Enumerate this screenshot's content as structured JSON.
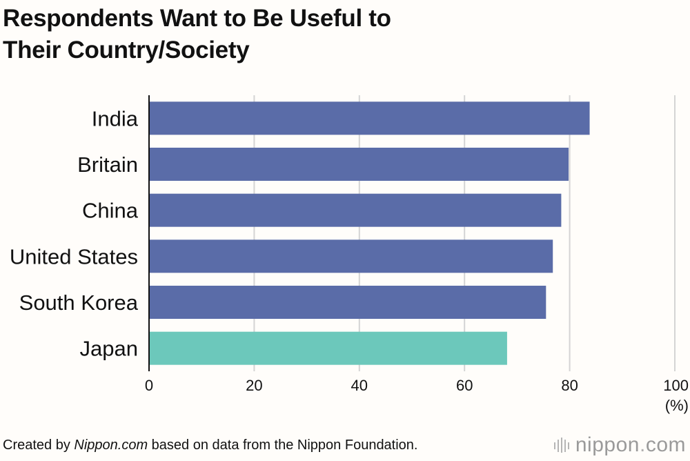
{
  "title": {
    "line1": "Respondents Want to Be Useful to",
    "line2": "Their Country/Society"
  },
  "chart_data": {
    "type": "bar",
    "orientation": "horizontal",
    "title": "Respondents Want to Be Useful to Their Country/Society",
    "categories": [
      "India",
      "Britain",
      "China",
      "United States",
      "South Korea",
      "Japan"
    ],
    "values": [
      83.8,
      79.8,
      78.4,
      76.8,
      75.5,
      68.1
    ],
    "xlabel": "(%)",
    "xlim": [
      0,
      100
    ],
    "xticks": [
      "0",
      "20",
      "40",
      "60",
      "80",
      "100"
    ],
    "grid": true,
    "colors": {
      "default": "#5a6ca8",
      "highlight": "#6cc8bb",
      "grid": "#d4d4d4",
      "axis": "#111111"
    },
    "highlight_category": "Japan"
  },
  "footer": {
    "prefix": "Created by ",
    "source_name": "Nippon.com",
    "suffix": " based on data from the Nippon Foundation."
  },
  "logo": {
    "name": "nippon",
    "dot": ".",
    "tld": "com"
  }
}
